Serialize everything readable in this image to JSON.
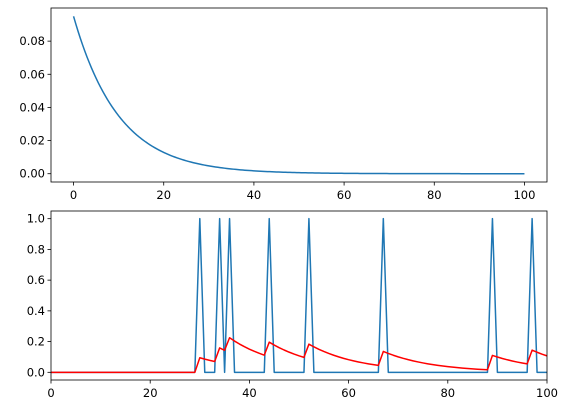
{
  "colors": {
    "series_blue": "#1f77b4",
    "series_red": "#ff0000",
    "axis": "#000000",
    "background": "#ffffff"
  },
  "chart_data": [
    {
      "type": "line",
      "title": "",
      "xlabel": "",
      "ylabel": "",
      "xlim": [
        -5,
        105
      ],
      "ylim": [
        -0.005,
        0.1
      ],
      "xticks": [
        0,
        20,
        40,
        60,
        80,
        100
      ],
      "yticks": [
        0.0,
        0.02,
        0.04,
        0.06,
        0.08
      ],
      "xtick_labels": [
        "0",
        "20",
        "40",
        "60",
        "80",
        "100"
      ],
      "ytick_labels": [
        "0.00",
        "0.02",
        "0.04",
        "0.06",
        "0.08"
      ],
      "grid": false,
      "series": [
        {
          "color": "#1f77b4",
          "kind": "exponential_decay",
          "amplitude": 0.095,
          "decay_rate": 0.1,
          "x_range": [
            0,
            100
          ]
        }
      ]
    },
    {
      "type": "line",
      "title": "",
      "xlabel": "",
      "ylabel": "",
      "xlim": [
        0,
        100
      ],
      "ylim": [
        -0.05,
        1.05
      ],
      "xticks": [
        0,
        20,
        40,
        60,
        80,
        100
      ],
      "yticks": [
        0.0,
        0.2,
        0.4,
        0.6,
        0.8,
        1.0
      ],
      "xtick_labels": [
        "0",
        "20",
        "40",
        "60",
        "80",
        "100"
      ],
      "ytick_labels": [
        "0.0",
        "0.2",
        "0.4",
        "0.6",
        "0.8",
        "1.0"
      ],
      "grid": false,
      "series": [
        {
          "color": "#1f77b4",
          "kind": "spike_train",
          "spike_times": [
            30,
            34,
            36,
            44,
            52,
            67,
            89,
            97
          ],
          "spike_height": 1.0,
          "x_range": [
            0,
            100
          ]
        },
        {
          "color": "#ff0000",
          "kind": "filtered_response",
          "spike_times": [
            30,
            34,
            36,
            44,
            52,
            67,
            89,
            97
          ],
          "jump": 0.095,
          "decay_rate": 0.1,
          "x_range": [
            0,
            100
          ]
        }
      ]
    }
  ]
}
